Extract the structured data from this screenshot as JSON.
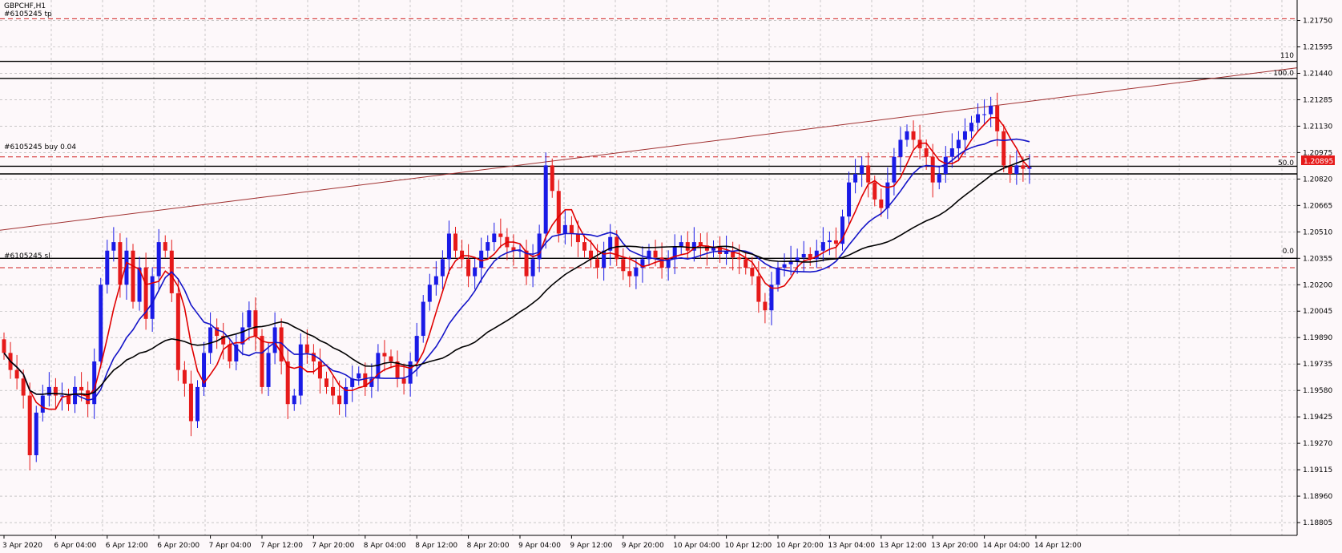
{
  "window": {
    "symbol_title": "GBPCHF,H1",
    "tp_label": "#6105245 tp"
  },
  "labels": {
    "order_label": "#6105245 buy 0.04",
    "sl_label": "#6105245 sl",
    "fib_110": "110",
    "fib_100": "100.0",
    "fib_50": "50.0",
    "fib_0": "0.0",
    "current_price": "1.20895"
  },
  "colors": {
    "background": "#fdf8fa",
    "grid": "#a8a8a8",
    "bull": "#1a1ae6",
    "bear": "#e61a1a",
    "ma_fast": "#e00000",
    "ma_mid": "#1414c8",
    "ma_slow": "#000000",
    "trendline": "#a03030",
    "dashed_level": "#d02020",
    "price_tag_bg": "#e61a1a",
    "price_tag_text": "#ffffff"
  },
  "chart_data": {
    "type": "candlestick",
    "symbol": "GBPCHF",
    "timeframe": "H1",
    "ylim": [
      1.1873,
      1.2187
    ],
    "y_ticks": [
      "1.21750",
      "1.21595",
      "1.21440",
      "1.21285",
      "1.21130",
      "1.20975",
      "1.20820",
      "1.20665",
      "1.20510",
      "1.20355",
      "1.20200",
      "1.20045",
      "1.19890",
      "1.19735",
      "1.19580",
      "1.19425",
      "1.19270",
      "1.19115",
      "1.18960",
      "1.18805"
    ],
    "x_ticks": [
      {
        "label": "3 Apr 2020",
        "i": 0
      },
      {
        "label": "6 Apr 04:00",
        "i": 8
      },
      {
        "label": "6 Apr 12:00",
        "i": 16
      },
      {
        "label": "6 Apr 20:00",
        "i": 24
      },
      {
        "label": "7 Apr 04:00",
        "i": 32
      },
      {
        "label": "7 Apr 12:00",
        "i": 40
      },
      {
        "label": "7 Apr 20:00",
        "i": 48
      },
      {
        "label": "8 Apr 04:00",
        "i": 56
      },
      {
        "label": "8 Apr 12:00",
        "i": 64
      },
      {
        "label": "8 Apr 20:00",
        "i": 72
      },
      {
        "label": "9 Apr 04:00",
        "i": 80
      },
      {
        "label": "9 Apr 12:00",
        "i": 88
      },
      {
        "label": "9 Apr 20:00",
        "i": 96
      },
      {
        "label": "10 Apr 04:00",
        "i": 104
      },
      {
        "label": "10 Apr 12:00",
        "i": 112
      },
      {
        "label": "10 Apr 20:00",
        "i": 120
      },
      {
        "label": "13 Apr 04:00",
        "i": 128
      },
      {
        "label": "13 Apr 12:00",
        "i": 136
      },
      {
        "label": "13 Apr 20:00",
        "i": 144
      },
      {
        "label": "14 Apr 04:00",
        "i": 152
      },
      {
        "label": "14 Apr 12:00",
        "i": 160
      }
    ],
    "candles_close": [
      1.198,
      1.197,
      1.1965,
      1.1955,
      1.192,
      1.1945,
      1.1955,
      1.196,
      1.1955,
      1.1955,
      1.195,
      1.196,
      1.1958,
      1.195,
      1.1975,
      1.202,
      1.204,
      1.2045,
      1.202,
      1.204,
      1.201,
      1.203,
      1.2,
      1.2025,
      1.2045,
      1.204,
      1.2015,
      1.197,
      1.1962,
      1.194,
      1.196,
      1.198,
      1.1995,
      1.199,
      1.1985,
      1.1975,
      1.1985,
      1.1995,
      1.2005,
      1.199,
      1.196,
      1.198,
      1.1995,
      1.1975,
      1.195,
      1.1955,
      1.1985,
      1.198,
      1.1975,
      1.1965,
      1.196,
      1.1955,
      1.195,
      1.196,
      1.1965,
      1.1968,
      1.196,
      1.1965,
      1.198,
      1.1978,
      1.1975,
      1.1965,
      1.1962,
      1.1975,
      1.199,
      1.201,
      1.202,
      1.2025,
      1.2035,
      1.205,
      1.204,
      1.2035,
      1.2025,
      1.203,
      1.204,
      1.2045,
      1.205,
      1.2048,
      1.2042,
      1.204,
      1.204,
      1.2025,
      1.2035,
      1.205,
      1.209,
      1.2075,
      1.205,
      1.2055,
      1.205,
      1.2045,
      1.204,
      1.2035,
      1.203,
      1.204,
      1.2048,
      1.2035,
      1.2028,
      1.2025,
      1.203,
      1.2035,
      1.204,
      1.2036,
      1.203,
      1.2035,
      1.2042,
      1.2045,
      1.204,
      1.2045,
      1.2043,
      1.204,
      1.2042,
      1.2038,
      1.204,
      1.2036,
      1.2035,
      1.203,
      1.2025,
      1.201,
      1.2005,
      1.202,
      1.203,
      1.2032,
      1.2034,
      1.2036,
      1.2038,
      1.2035,
      1.204,
      1.2045,
      1.2046,
      1.2044,
      1.206,
      1.208,
      1.2085,
      1.209,
      1.208,
      1.207,
      1.2065,
      1.208,
      1.2095,
      1.2105,
      1.211,
      1.2105,
      1.21,
      1.2095,
      1.208,
      1.2085,
      1.2095,
      1.21,
      1.2105,
      1.211,
      1.2115,
      1.212,
      1.212,
      1.2125,
      1.211,
      1.209,
      1.2085,
      1.209,
      1.2088,
      1.2089
    ],
    "ma_fast_label": "",
    "ma_mid_label": "",
    "ma_slow_label": "",
    "levels": {
      "tp": 1.2176,
      "order": 1.2095,
      "sl": 1.203,
      "fib_110": 1.2151,
      "fib_100": 1.2141,
      "fib_50": 1.20895,
      "fib_0": 1.20355,
      "line_50_lower": 1.2085
    },
    "current_price": 1.20895,
    "trendline": {
      "from": [
        0,
        1.2052
      ],
      "to": [
        160,
        1.2128
      ]
    },
    "grid": true
  }
}
